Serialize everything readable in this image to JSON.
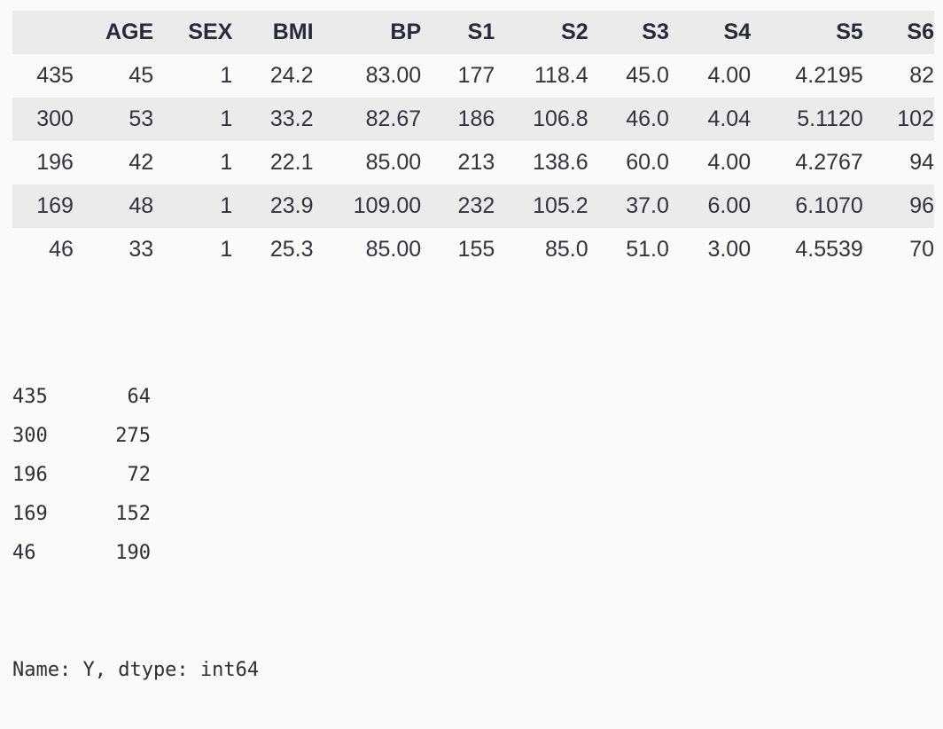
{
  "dataframe": {
    "columns": [
      "",
      "AGE",
      "SEX",
      "BMI",
      "BP",
      "S1",
      "S2",
      "S3",
      "S4",
      "S5",
      "S6"
    ],
    "rows": [
      [
        "435",
        "45",
        "1",
        "24.2",
        "83.00",
        "177",
        "118.4",
        "45.0",
        "4.00",
        "4.2195",
        "82"
      ],
      [
        "300",
        "53",
        "1",
        "33.2",
        "82.67",
        "186",
        "106.8",
        "46.0",
        "4.04",
        "5.1120",
        "102"
      ],
      [
        "196",
        "42",
        "1",
        "22.1",
        "85.00",
        "213",
        "138.6",
        "60.0",
        "4.00",
        "4.2767",
        "94"
      ],
      [
        "169",
        "48",
        "1",
        "23.9",
        "109.00",
        "232",
        "105.2",
        "37.0",
        "6.00",
        "6.1070",
        "96"
      ],
      [
        "46",
        "33",
        "1",
        "25.3",
        "85.00",
        "155",
        "85.0",
        "51.0",
        "3.00",
        "4.5539",
        "70"
      ]
    ]
  },
  "series": {
    "rows": [
      {
        "index": "435",
        "value": "64"
      },
      {
        "index": "300",
        "value": "275"
      },
      {
        "index": "196",
        "value": "72"
      },
      {
        "index": "169",
        "value": "152"
      },
      {
        "index": "46",
        "value": "190"
      }
    ],
    "footer": "Name: Y, dtype: int64"
  },
  "colors": {
    "page_background": "#fafafa",
    "header_row_background": "#ebebeb",
    "striped_row_background": "#ebebeb",
    "text": "#26262c"
  }
}
